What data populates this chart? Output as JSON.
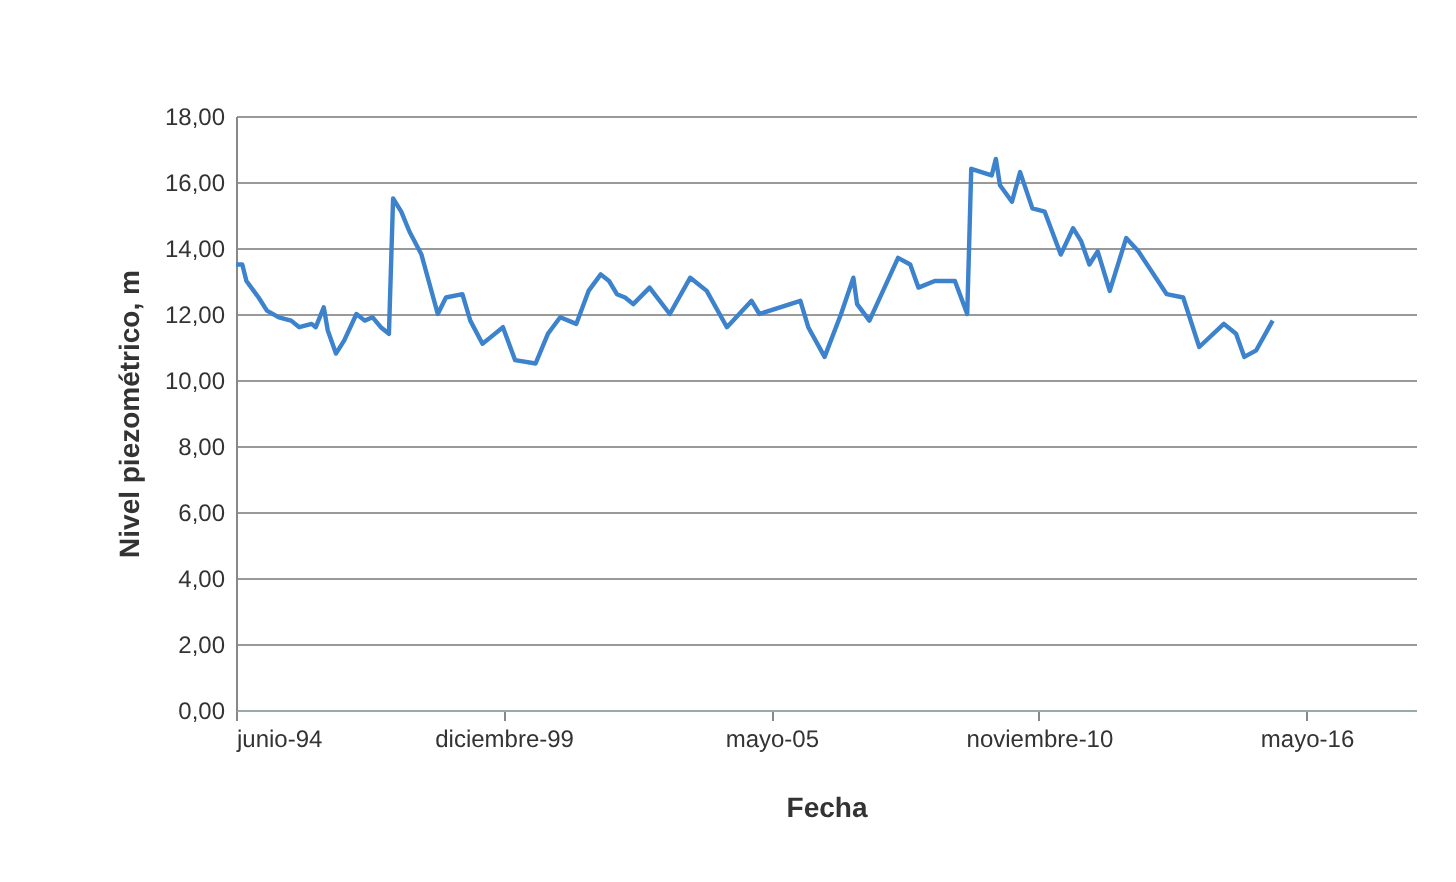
{
  "chart_data": {
    "type": "line",
    "xlabel": "Fecha",
    "ylabel": "Nivel piezométrico, m",
    "x": [
      "1994-06-15",
      "1994-08",
      "1994-09",
      "1994-12",
      "1995-02",
      "1995-05",
      "1995-08",
      "1995-10",
      "1996-01",
      "1996-02",
      "1996-04",
      "1996-05",
      "1996-07",
      "1996-09",
      "1996-12",
      "1997-02",
      "1997-04",
      "1997-06",
      "1997-08",
      "1997-09",
      "1997-11",
      "1998-01",
      "1998-04",
      "1998-08",
      "1998-10",
      "1999-02",
      "1999-04",
      "1999-07",
      "1999-09",
      "1999-12",
      "2000-03",
      "2000-08",
      "2000-11",
      "2001-02",
      "2001-06",
      "2001-09",
      "2001-12",
      "2002-02",
      "2002-04",
      "2002-06",
      "2002-08",
      "2002-12",
      "2003-05",
      "2003-10",
      "2004-02",
      "2004-07",
      "2005-01",
      "2005-03",
      "2006-01",
      "2006-03",
      "2006-07",
      "2006-11",
      "2007-02",
      "2007-03",
      "2007-06",
      "2008-01",
      "2008-04",
      "2008-06",
      "2008-10",
      "2009-03",
      "2009-06",
      "2009-07",
      "2009-12",
      "2010-01",
      "2010-02",
      "2010-05",
      "2010-07",
      "2010-10",
      "2011-01",
      "2011-05",
      "2011-08",
      "2011-10",
      "2011-12",
      "2012-02",
      "2012-05",
      "2012-09",
      "2012-12",
      "2013-07",
      "2013-11",
      "2014-03",
      "2014-09",
      "2014-12",
      "2015-02",
      "2015-05",
      "2015-09"
    ],
    "series": [
      {
        "color": "#3c82cc",
        "values": [
          13.5,
          13.5,
          13.0,
          12.5,
          12.1,
          11.9,
          11.8,
          11.6,
          11.7,
          11.6,
          12.2,
          11.5,
          10.8,
          11.2,
          12.0,
          11.8,
          11.9,
          11.6,
          11.4,
          15.5,
          15.1,
          14.5,
          13.8,
          12.0,
          12.5,
          12.6,
          11.8,
          11.1,
          11.3,
          11.6,
          10.6,
          10.5,
          11.4,
          11.9,
          11.7,
          12.7,
          13.2,
          13.0,
          12.6,
          12.5,
          12.3,
          12.8,
          12.0,
          13.1,
          12.7,
          11.6,
          12.4,
          12.0,
          12.4,
          11.6,
          10.7,
          12.0,
          13.1,
          12.3,
          11.8,
          13.7,
          13.5,
          12.8,
          13.0,
          13.0,
          12.0,
          16.4,
          16.2,
          16.7,
          15.9,
          15.4,
          16.3,
          15.2,
          15.1,
          13.8,
          14.6,
          14.2,
          13.5,
          13.9,
          12.7,
          14.3,
          13.9,
          12.6,
          12.5,
          11.0,
          11.7,
          11.4,
          10.7,
          10.9,
          11.8
        ]
      }
    ],
    "xlim": [
      "1994-06-15",
      "2018-08-07"
    ],
    "xticks": [
      {
        "value": "1994-06-15",
        "label": "junio-94"
      },
      {
        "value": "1999-12-06",
        "label": "diciembre-99"
      },
      {
        "value": "2005-05-29",
        "label": "mayo-05"
      },
      {
        "value": "2010-11-19",
        "label": "noviembre-10"
      },
      {
        "value": "2016-05-11",
        "label": "mayo-16"
      }
    ],
    "ylim": [
      0,
      18
    ],
    "yticks": [
      {
        "value": 0,
        "label": "0,00"
      },
      {
        "value": 2,
        "label": "2,00"
      },
      {
        "value": 4,
        "label": "4,00"
      },
      {
        "value": 6,
        "label": "6,00"
      },
      {
        "value": 8,
        "label": "8,00"
      },
      {
        "value": 10,
        "label": "10,00"
      },
      {
        "value": 12,
        "label": "12,00"
      },
      {
        "value": 14,
        "label": "14,00"
      },
      {
        "value": 16,
        "label": "16,00"
      },
      {
        "value": 18,
        "label": "18,00"
      }
    ],
    "grid": "y"
  }
}
